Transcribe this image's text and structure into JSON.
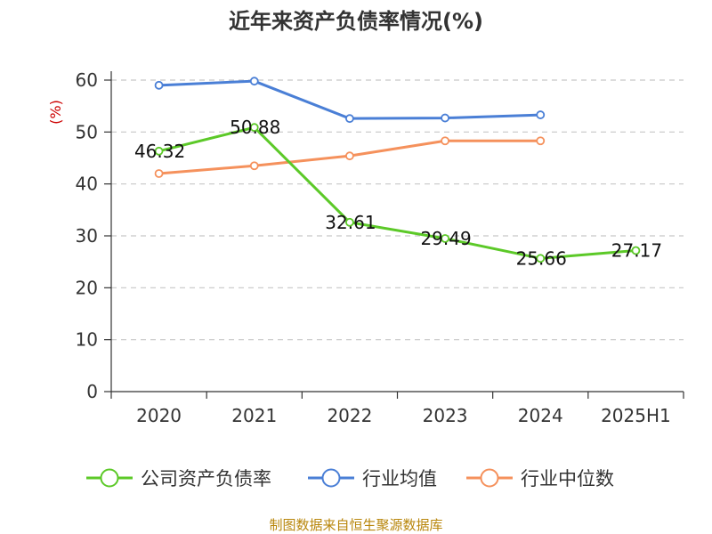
{
  "chart_data": {
    "type": "line",
    "title": "近年来资产负债率情况(%)",
    "ylabel": "(%)",
    "xlabel": "",
    "categories": [
      "2020",
      "2021",
      "2022",
      "2023",
      "2024",
      "2025H1"
    ],
    "ylim": [
      0,
      60
    ],
    "yticks": [
      0,
      10,
      20,
      30,
      40,
      50,
      60
    ],
    "grid": "horizontal dashed",
    "legend_position": "bottom",
    "series": [
      {
        "name": "公司资产负债率",
        "color": "#5cc928",
        "values": [
          46.32,
          50.88,
          32.61,
          29.49,
          25.66,
          27.17
        ],
        "labels": [
          "46.32",
          "50.88",
          "32.61",
          "29.49",
          "25.66",
          "27.17"
        ]
      },
      {
        "name": "行业均值",
        "color": "#4a7fd6",
        "values": [
          59.0,
          59.8,
          52.6,
          52.7,
          53.3,
          null
        ]
      },
      {
        "name": "行业中位数",
        "color": "#f5915c",
        "values": [
          42.0,
          43.5,
          45.4,
          48.3,
          48.3,
          null
        ]
      }
    ]
  },
  "source": "制图数据来自恒生聚源数据库"
}
